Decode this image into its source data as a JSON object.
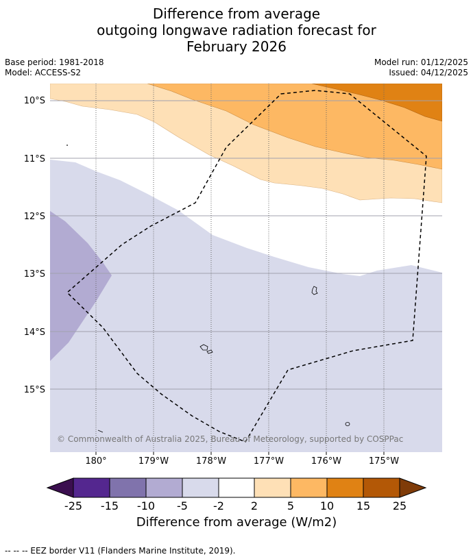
{
  "title": {
    "line1": "Difference from average",
    "line2": "outgoing longwave radiation forecast for",
    "line3": "February 2026"
  },
  "meta": {
    "base_period": "Base period: 1981-2018",
    "model": "Model: ACCESS-S2",
    "model_run": "Model run: 01/12/2025",
    "issued": "Issued: 04/12/2025"
  },
  "map": {
    "lat_labels": [
      "10°S",
      "11°S",
      "12°S",
      "13°S",
      "14°S",
      "15°S"
    ],
    "lon_labels": [
      "180°",
      "179°W",
      "178°W",
      "177°W",
      "176°W",
      "175°W"
    ],
    "copyright": "© Commonwealth of Australia 2025, Bureau of Meteorology, supported by COSPPac"
  },
  "colorbar": {
    "ticks": [
      "-25",
      "-15",
      "-10",
      "-5",
      "-2",
      "2",
      "5",
      "10",
      "15",
      "25"
    ],
    "colors": {
      "below_-25": "#3b0f4f",
      "-25_-15": "#54278f",
      "-15_-10": "#8073ac",
      "-10_-5": "#b2abd2",
      "-5_-2": "#d8daeb",
      "-2_2": "#ffffff",
      "2_5": "#fee0b6",
      "5_10": "#fdb863",
      "10_15": "#e08214",
      "15_25": "#b35806",
      "above_25": "#7f3b08"
    },
    "label": "Difference from average (W/m2)"
  },
  "footer": "--  --  -- EEZ border V11 (Flanders Marine Institute, 2019)."
}
